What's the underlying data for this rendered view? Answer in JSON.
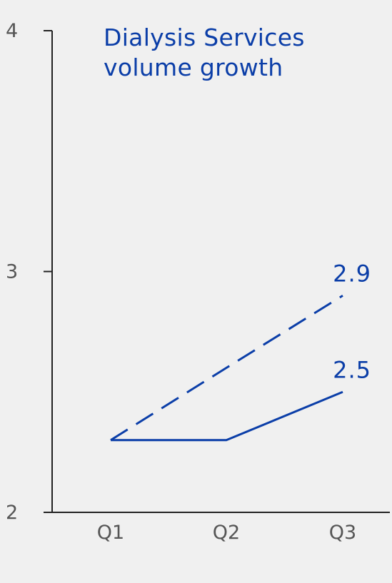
{
  "chart_data": {
    "type": "line",
    "title_lines": [
      "Dialysis Services",
      "volume growth"
    ],
    "categories": [
      "Q1",
      "Q2",
      "Q3"
    ],
    "xlabel": "",
    "ylabel": "",
    "ylim": [
      2,
      4
    ],
    "yticks": [
      "2",
      "3",
      "4"
    ],
    "grid": false,
    "series": [
      {
        "style": "dashed",
        "values": [
          2.3,
          2.6,
          2.9
        ],
        "end_label": "2.9"
      },
      {
        "style": "solid",
        "values": [
          2.3,
          2.3,
          2.5
        ],
        "end_label": "2.5"
      }
    ],
    "colors": {
      "series": "#0b3ea8",
      "title": "#0b3ea8",
      "axis": "#222222",
      "tick_text": "#555555",
      "background": "#f0f0f0"
    }
  }
}
